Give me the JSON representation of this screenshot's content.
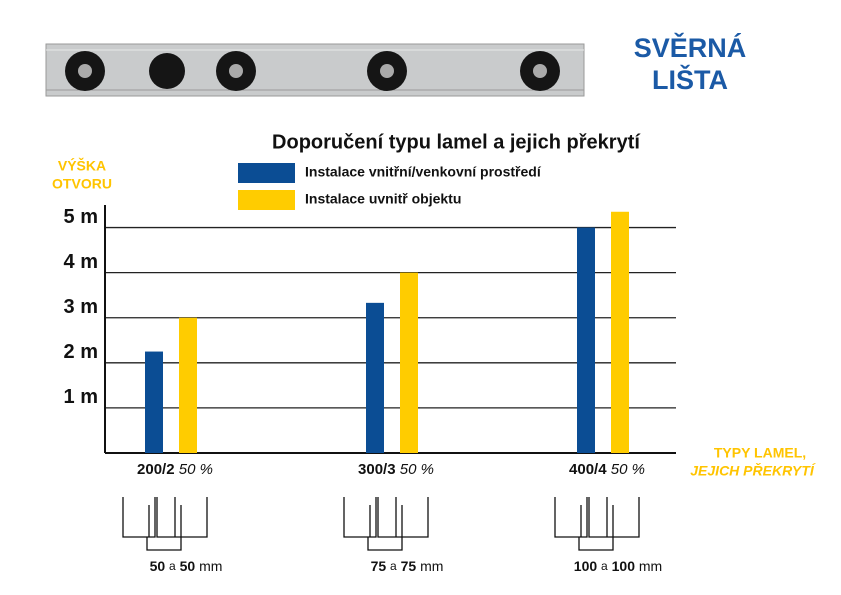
{
  "header": {
    "title": [
      "SVĚRNÁ",
      "LIŠTA"
    ]
  },
  "chart_data": {
    "type": "bar",
    "title": "Doporučení typu lamel a jejich překrytí",
    "y_label": [
      "VÝŠKA",
      "OTVORU"
    ],
    "x_label": [
      "TYPY LAMEL,",
      "JEJICH PŘEKRYTÍ"
    ],
    "categories": [
      "200/2",
      "300/3",
      "400/4"
    ],
    "overlap_labels": [
      "50 %",
      "50 %",
      "50 %"
    ],
    "series": [
      {
        "name": "Instalace vnitřní/venkovní prostředí",
        "color": "#0b4d94",
        "values": [
          2.25,
          3.33,
          5.0
        ]
      },
      {
        "name": "Instalace uvnitř objektu",
        "color": "#ffcc00",
        "values": [
          3.0,
          4.0,
          5.35
        ]
      }
    ],
    "ylim": [
      0,
      5.5
    ],
    "yticks": [
      {
        "value": 1,
        "label": "1 m"
      },
      {
        "value": 2,
        "label": "2 m"
      },
      {
        "value": 3,
        "label": "3 m"
      },
      {
        "value": 4,
        "label": "4 m"
      },
      {
        "value": 5,
        "label": "5 m"
      }
    ],
    "grid": true,
    "dimensions": [
      {
        "left": 50,
        "right": 50
      },
      {
        "left": 75,
        "right": 75
      },
      {
        "left": 100,
        "right": 100
      }
    ],
    "dimension_joiner": "a",
    "dimension_unit": "mm"
  }
}
